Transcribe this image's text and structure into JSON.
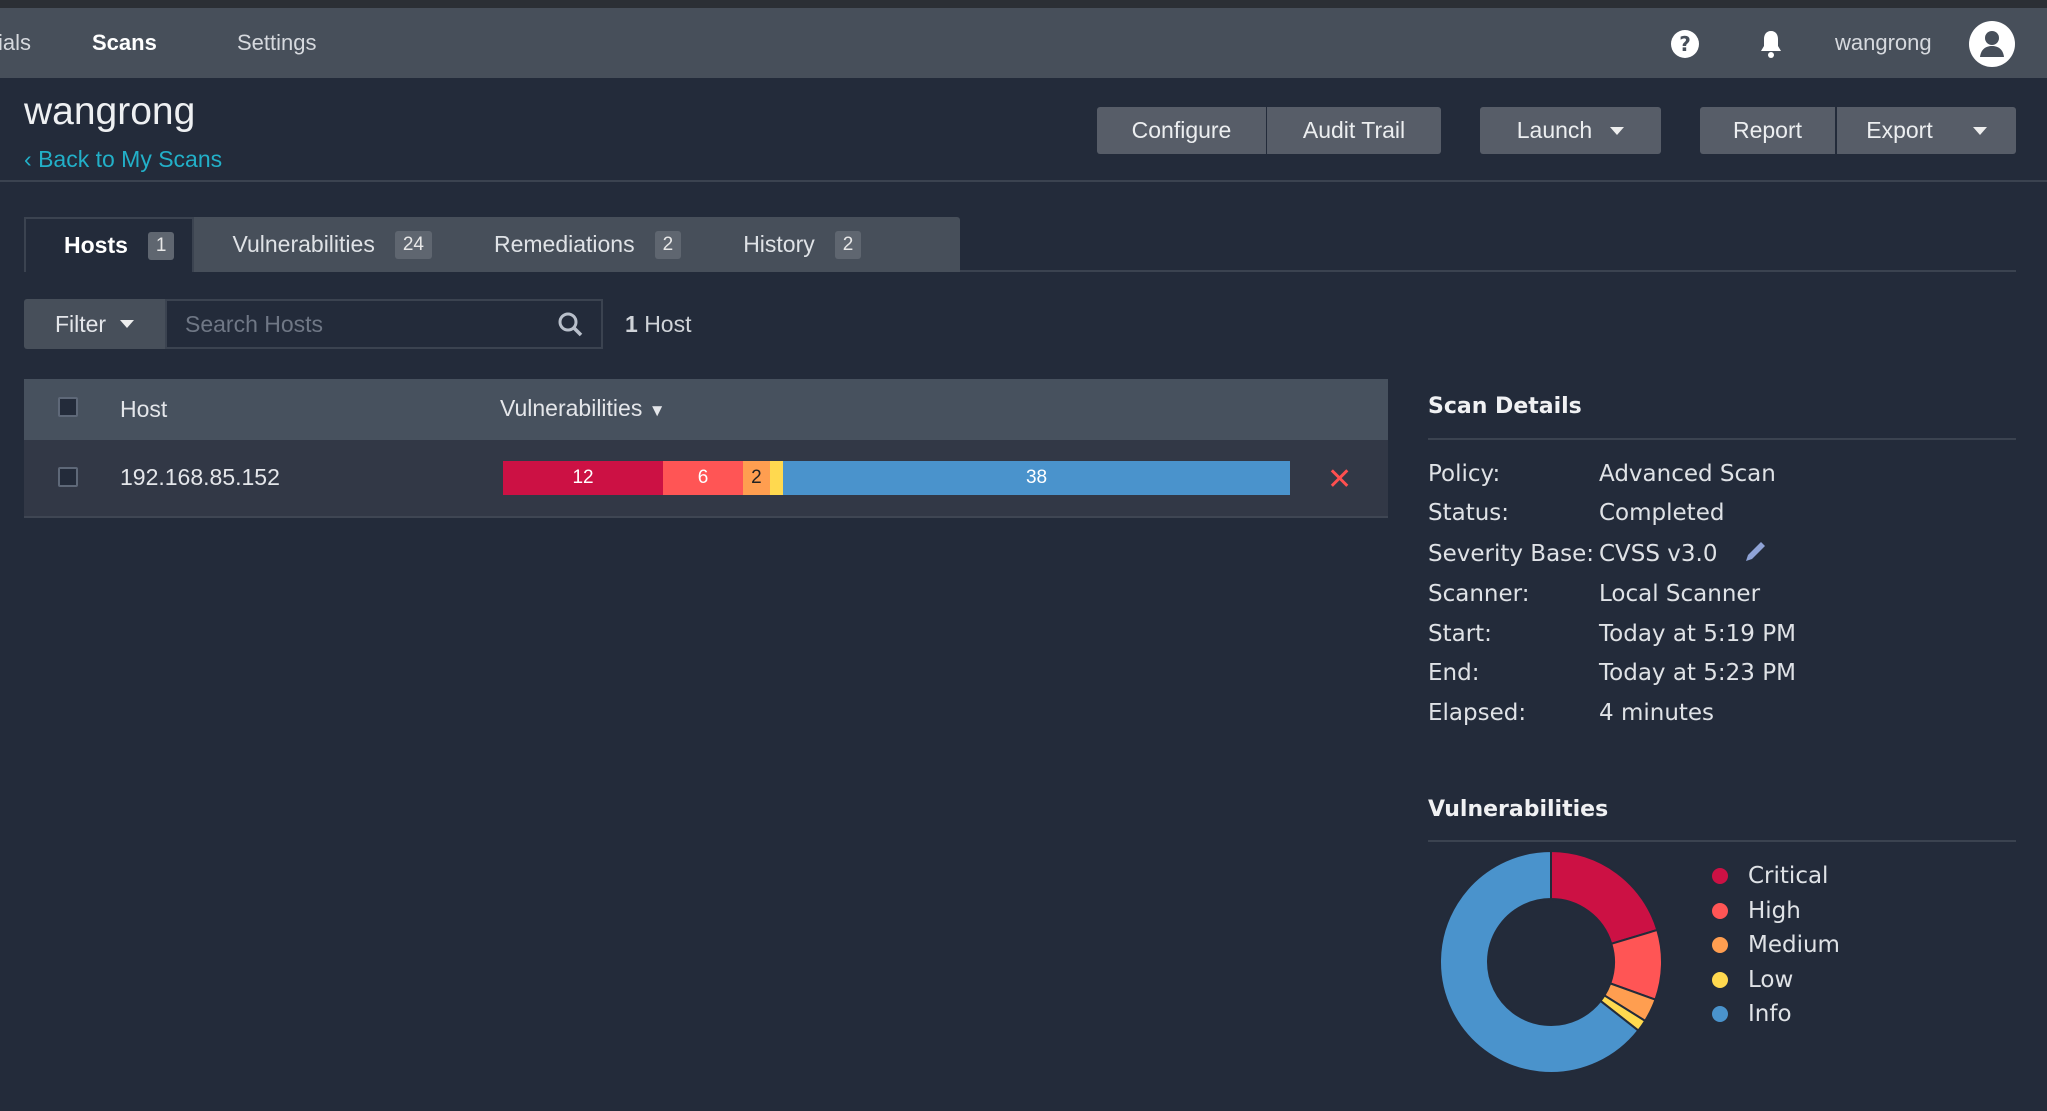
{
  "nav": {
    "items": [
      "ials",
      "Scans",
      "Settings"
    ],
    "active": "Scans",
    "username": "wangrong"
  },
  "header": {
    "title": "wangrong",
    "back_link": "Back to My Scans",
    "buttons": {
      "configure": "Configure",
      "audit_trail": "Audit Trail",
      "launch": "Launch",
      "report": "Report",
      "export": "Export"
    }
  },
  "tabs": [
    {
      "label": "Hosts",
      "count": "1"
    },
    {
      "label": "Vulnerabilities",
      "count": "24"
    },
    {
      "label": "Remediations",
      "count": "2"
    },
    {
      "label": "History",
      "count": "2"
    }
  ],
  "filter": {
    "label": "Filter",
    "search_placeholder": "Search Hosts",
    "host_count_num": "1",
    "host_count_label": "Host"
  },
  "table": {
    "columns": [
      "Host",
      "Vulnerabilities"
    ],
    "rows": [
      {
        "host": "192.168.85.152",
        "critical": 12,
        "high": 6,
        "medium": 2,
        "low": 1,
        "info": 38,
        "labels": {
          "critical": "12",
          "high": "6",
          "medium": "2",
          "low": "",
          "info": "38"
        }
      }
    ]
  },
  "colors": {
    "critical": "#cc1144",
    "high": "#ff5555",
    "medium": "#ff9e50",
    "low": "#ffd94f",
    "info": "#4a93cc",
    "accent": "#22b0c8"
  },
  "scan_details": {
    "title": "Scan Details",
    "rows": [
      {
        "label": "Policy:",
        "value": "Advanced Scan"
      },
      {
        "label": "Status:",
        "value": "Completed"
      },
      {
        "label": "Severity Base:",
        "value": "CVSS v3.0"
      },
      {
        "label": "Scanner:",
        "value": "Local Scanner"
      },
      {
        "label": "Start:",
        "value": "Today at 5:19 PM"
      },
      {
        "label": "End:",
        "value": "Today at 5:23 PM"
      },
      {
        "label": "Elapsed:",
        "value": "4 minutes"
      }
    ]
  },
  "chart_data": {
    "type": "pie",
    "title": "Vulnerabilities",
    "categories": [
      "Critical",
      "High",
      "Medium",
      "Low",
      "Info"
    ],
    "values": [
      12,
      6,
      2,
      1,
      38
    ],
    "colors": [
      "#cc1144",
      "#ff5555",
      "#ff9e50",
      "#ffd94f",
      "#4a93cc"
    ],
    "legend": "right",
    "donut": true
  }
}
